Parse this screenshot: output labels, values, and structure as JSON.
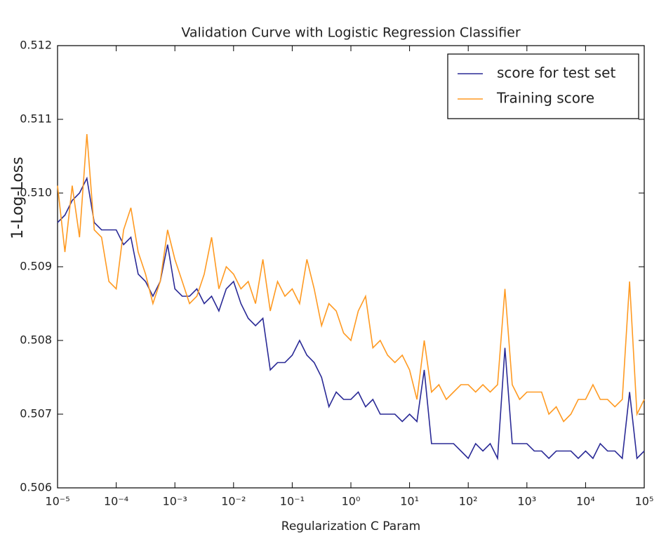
{
  "chart_data": {
    "type": "line",
    "title": "Validation Curve with Logistic Regression Classifier",
    "xlabel": "Regularization C Param",
    "ylabel": "1-Log-Loss",
    "xscale": "log",
    "legend": "upper right",
    "grid": false,
    "xlim": [
      1e-05,
      100000.0
    ],
    "ylim": [
      0.506,
      0.512
    ],
    "xticks": [
      {
        "value": 1e-05,
        "label": "10⁻⁵"
      },
      {
        "value": 0.0001,
        "label": "10⁻⁴"
      },
      {
        "value": 0.001,
        "label": "10⁻³"
      },
      {
        "value": 0.01,
        "label": "10⁻²"
      },
      {
        "value": 0.1,
        "label": "10⁻¹"
      },
      {
        "value": 1,
        "label": "10⁰"
      },
      {
        "value": 10,
        "label": "10¹"
      },
      {
        "value": 100,
        "label": "10²"
      },
      {
        "value": 1000,
        "label": "10³"
      },
      {
        "value": 10000,
        "label": "10⁴"
      },
      {
        "value": 100000,
        "label": "10⁵"
      }
    ],
    "yticks": [
      0.506,
      0.507,
      0.508,
      0.509,
      {
        "value": 0.51,
        "label": "0.510"
      },
      0.511,
      0.512
    ],
    "x": [
      1e-05,
      1.334e-05,
      1.778e-05,
      2.371e-05,
      3.162e-05,
      4.217e-05,
      5.623e-05,
      7.499e-05,
      0.0001,
      0.0001334,
      0.0001778,
      0.0002371,
      0.0003162,
      0.0004217,
      0.0005623,
      0.0007499,
      0.001,
      0.001334,
      0.001778,
      0.002371,
      0.003162,
      0.004217,
      0.005623,
      0.007499,
      0.01,
      0.01334,
      0.01778,
      0.02371,
      0.03162,
      0.04217,
      0.05623,
      0.07499,
      0.1,
      0.1334,
      0.1778,
      0.2371,
      0.3162,
      0.4217,
      0.5623,
      0.7499,
      1,
      1.334,
      1.778,
      2.371,
      3.162,
      4.217,
      5.623,
      7.499,
      10,
      13.34,
      17.78,
      23.71,
      31.62,
      42.17,
      56.23,
      74.99,
      100,
      133.4,
      177.8,
      237.1,
      316.2,
      421.7,
      562.3,
      749.9,
      1000,
      1334,
      1778,
      2371,
      3162,
      4217,
      5623,
      7499,
      10000,
      13340,
      17780,
      23710,
      31620,
      42170,
      56230,
      74990,
      100000
    ],
    "series": [
      {
        "name": "score for test set",
        "color": "#2a2a96",
        "values": [
          0.5096,
          0.5097,
          0.5099,
          0.51,
          0.5102,
          0.5096,
          0.5095,
          0.5095,
          0.5095,
          0.5093,
          0.5094,
          0.5089,
          0.5088,
          0.5086,
          0.5088,
          0.5093,
          0.5087,
          0.5086,
          0.5086,
          0.5087,
          0.5085,
          0.5086,
          0.5084,
          0.5087,
          0.5088,
          0.5085,
          0.5083,
          0.5082,
          0.5083,
          0.5076,
          0.5077,
          0.5077,
          0.5078,
          0.508,
          0.5078,
          0.5077,
          0.5075,
          0.5071,
          0.5073,
          0.5072,
          0.5072,
          0.5073,
          0.5071,
          0.5072,
          0.507,
          0.507,
          0.507,
          0.5069,
          0.507,
          0.5069,
          0.5076,
          0.5066,
          0.5066,
          0.5066,
          0.5066,
          0.5065,
          0.5064,
          0.5066,
          0.5065,
          0.5066,
          0.5064,
          0.5079,
          0.5066,
          0.5066,
          0.5066,
          0.5065,
          0.5065,
          0.5064,
          0.5065,
          0.5065,
          0.5065,
          0.5064,
          0.5065,
          0.5064,
          0.5066,
          0.5065,
          0.5065,
          0.5064,
          0.5073,
          0.5064,
          0.5065
        ]
      },
      {
        "name": "Training score",
        "color": "#ff9a22",
        "values": [
          0.5101,
          0.5092,
          0.5101,
          0.5094,
          0.5108,
          0.5095,
          0.5094,
          0.5088,
          0.5087,
          0.5095,
          0.5098,
          0.5092,
          0.5089,
          0.5085,
          0.5088,
          0.5095,
          0.5091,
          0.5088,
          0.5085,
          0.5086,
          0.5089,
          0.5094,
          0.5087,
          0.509,
          0.5089,
          0.5087,
          0.5088,
          0.5085,
          0.5091,
          0.5084,
          0.5088,
          0.5086,
          0.5087,
          0.5085,
          0.5091,
          0.5087,
          0.5082,
          0.5085,
          0.5084,
          0.5081,
          0.508,
          0.5084,
          0.5086,
          0.5079,
          0.508,
          0.5078,
          0.5077,
          0.5078,
          0.5076,
          0.5072,
          0.508,
          0.5073,
          0.5074,
          0.5072,
          0.5073,
          0.5074,
          0.5074,
          0.5073,
          0.5074,
          0.5073,
          0.5074,
          0.5087,
          0.5074,
          0.5072,
          0.5073,
          0.5073,
          0.5073,
          0.507,
          0.5071,
          0.5069,
          0.507,
          0.5072,
          0.5072,
          0.5074,
          0.5072,
          0.5072,
          0.5071,
          0.5072,
          0.5088,
          0.507,
          0.5072
        ]
      }
    ]
  }
}
